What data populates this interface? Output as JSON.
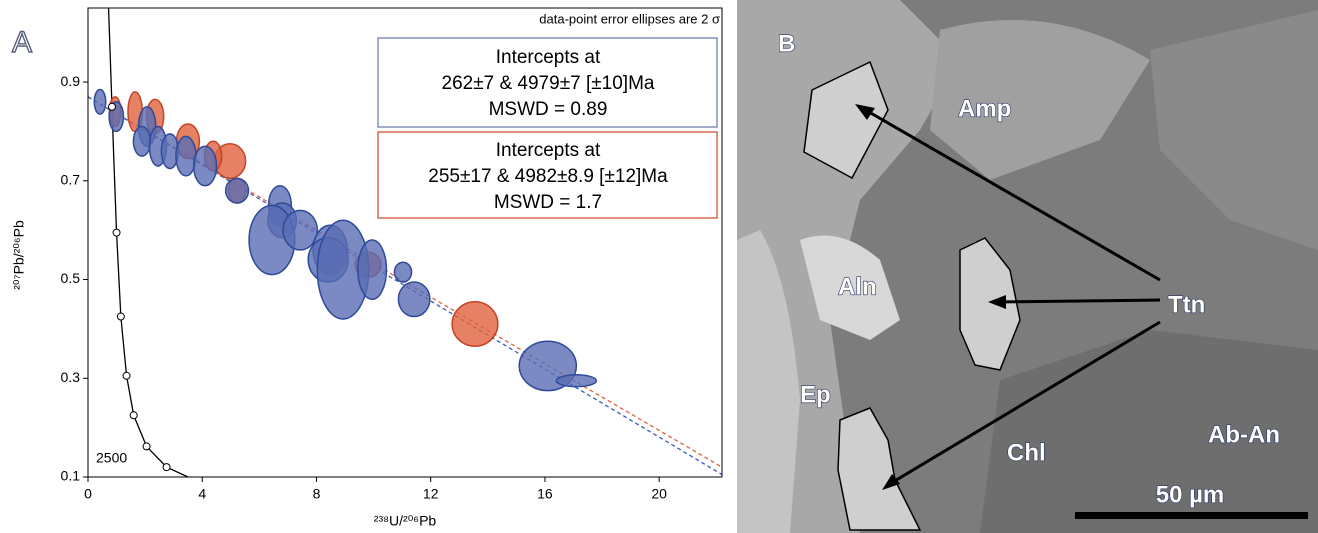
{
  "panel_label": "A",
  "chart_data": {
    "type": "scatter",
    "note": "data-point error ellipses are 2 σ",
    "x_label": "²³⁸U/²⁰⁶Pb",
    "y_label": "²⁰⁷Pb/²⁰⁶Pb",
    "xlim": [
      0,
      22.2
    ],
    "ylim": [
      0.1,
      1.05
    ],
    "xticks": [
      0,
      4,
      8,
      12,
      16,
      20
    ],
    "yticks": [
      0.1,
      0.3,
      0.5,
      0.7,
      0.9
    ],
    "series": [
      {
        "color": "#e0623c",
        "edge": "#c4442a",
        "x": [
          0.95,
          1.65,
          2.35,
          3.5,
          4.97,
          4.38,
          5.22,
          9.81,
          13.55
        ],
        "y": [
          0.84,
          0.84,
          0.83,
          0.78,
          0.74,
          0.75,
          0.68,
          0.53,
          0.41
        ],
        "x_err": [
          0.2,
          0.25,
          0.3,
          0.4,
          0.55,
          0.3,
          0.3,
          0.45,
          0.8
        ],
        "y_err": [
          0.03,
          0.04,
          0.035,
          0.035,
          0.035,
          0.03,
          0.025,
          0.025,
          0.045
        ]
      },
      {
        "color": "#5a6db4",
        "edge": "#2e4a9a",
        "x": [
          0.42,
          0.99,
          2.07,
          1.89,
          2.45,
          2.87,
          3.43,
          4.1,
          5.22,
          6.72,
          6.8,
          6.44,
          7.43,
          8.48,
          8.41,
          8.93,
          9.95,
          11.03,
          11.42,
          16.1,
          17.1
        ],
        "y": [
          0.86,
          0.83,
          0.81,
          0.78,
          0.77,
          0.76,
          0.75,
          0.73,
          0.68,
          0.65,
          0.62,
          0.58,
          0.6,
          0.56,
          0.54,
          0.52,
          0.52,
          0.515,
          0.46,
          0.325,
          0.295
        ],
        "x_err": [
          0.2,
          0.25,
          0.3,
          0.3,
          0.3,
          0.3,
          0.35,
          0.4,
          0.4,
          0.4,
          0.5,
          0.8,
          0.6,
          0.6,
          0.7,
          0.9,
          0.5,
          0.3,
          0.55,
          1.0,
          0.7
        ],
        "y_err": [
          0.025,
          0.03,
          0.04,
          0.03,
          0.04,
          0.035,
          0.04,
          0.04,
          0.025,
          0.04,
          0.035,
          0.07,
          0.04,
          0.05,
          0.045,
          0.1,
          0.06,
          0.02,
          0.035,
          0.05,
          0.012
        ]
      }
    ],
    "discordia": [
      {
        "color": "#e0623c",
        "x": [
          0,
          22.2
        ],
        "y": [
          0.87,
          0.12
        ]
      },
      {
        "color": "#3a5cc0",
        "x": [
          0,
          22.2
        ],
        "y": [
          0.87,
          0.105
        ]
      }
    ],
    "concordia": {
      "x": [
        0.72,
        0.84,
        0.9,
        1.0,
        1.15,
        1.35,
        1.6,
        2.05,
        2.75,
        3.5
      ],
      "y": [
        1.05,
        0.85,
        0.75,
        0.595,
        0.425,
        0.305,
        0.225,
        0.162,
        0.12,
        0.1
      ],
      "marker_x": [
        0.84,
        1.0,
        1.15,
        1.35,
        1.6,
        2.05,
        2.75
      ],
      "marker_y": [
        0.85,
        0.595,
        0.425,
        0.305,
        0.225,
        0.162,
        0.12
      ],
      "label": "2500"
    },
    "annotations": [
      {
        "lines": [
          "Intercepts at",
          "262±7 & 4979±7 [±10]Ma",
          "MSWD = 0.89"
        ]
      },
      {
        "lines": [
          "Intercepts at",
          "255±17 & 4982±8.9 [±12]Ma",
          "MSWD = 1.7"
        ]
      }
    ]
  },
  "image": {
    "panel_label": "B",
    "labels": [
      "Amp",
      "Aln",
      "Ep",
      "Chl",
      "Ab-An"
    ],
    "pointer": "Ttn",
    "scale_bar": "50 µm"
  }
}
